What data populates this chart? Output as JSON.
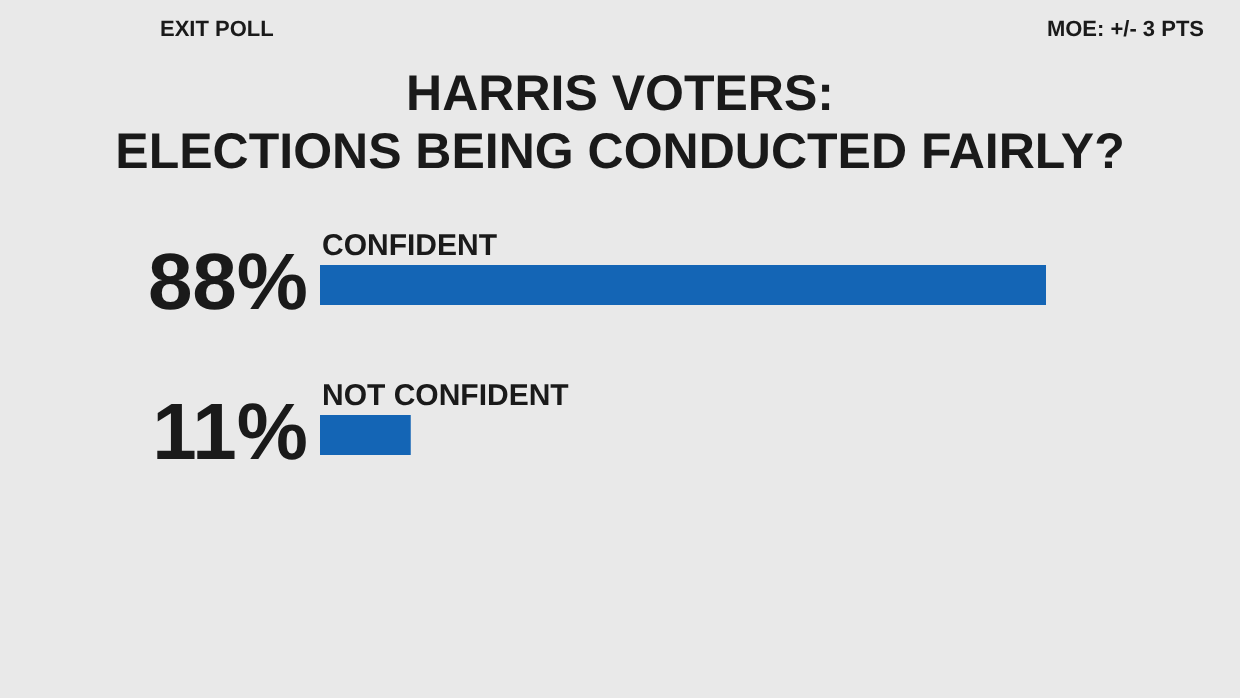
{
  "chart_data": {
    "type": "bar",
    "orientation": "horizontal",
    "title": "HARRIS VOTERS:\nELECTIONS BEING CONDUCTED FAIRLY?",
    "annotations": [
      "EXIT POLL",
      "MOE: +/- 3 PTS"
    ],
    "categories": [
      "CONFIDENT",
      "NOT CONFIDENT"
    ],
    "values": [
      88,
      11
    ],
    "value_labels": [
      "88%",
      "11%"
    ],
    "color": "#1465b5",
    "tick_labels": false
  }
}
